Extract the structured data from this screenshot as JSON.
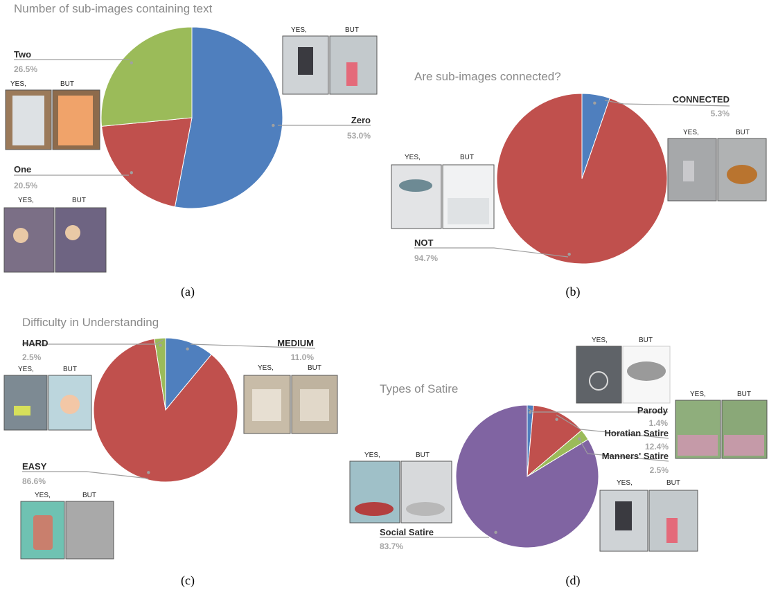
{
  "captions": [
    "(a)",
    "(b)",
    "(c)",
    "(d)"
  ],
  "thumb_labels": {
    "left": "YES,",
    "right": "BUT"
  },
  "chart_data": [
    {
      "type": "pie",
      "title": "Number of sub-images containing text",
      "colors": [
        "#4f7fbe",
        "#c0504d",
        "#9bbb59"
      ],
      "slices": [
        {
          "label": "Zero",
          "value": 53.0,
          "pct_text": "53.0%"
        },
        {
          "label": "One",
          "value": 20.5,
          "pct_text": "20.5%"
        },
        {
          "label": "Two",
          "value": 26.5,
          "pct_text": "26.5%"
        }
      ]
    },
    {
      "type": "pie",
      "title": "Are sub-images connected?",
      "colors": [
        "#4f7fbe",
        "#c0504d"
      ],
      "slices": [
        {
          "label": "CONNECTED",
          "value": 5.3,
          "pct_text": "5.3%"
        },
        {
          "label": "NOT",
          "value": 94.7,
          "pct_text": "94.7%"
        }
      ]
    },
    {
      "type": "pie",
      "title": "Difficulty in Understanding",
      "colors": [
        "#4f7fbe",
        "#c0504d",
        "#9bbb59"
      ],
      "slices": [
        {
          "label": "MEDIUM",
          "value": 11.0,
          "pct_text": "11.0%"
        },
        {
          "label": "EASY",
          "value": 86.6,
          "pct_text": "86.6%"
        },
        {
          "label": "HARD",
          "value": 2.5,
          "pct_text": "2.5%"
        }
      ]
    },
    {
      "type": "pie",
      "title": "Types of Satire",
      "colors": [
        "#4f7fbe",
        "#c0504d",
        "#9bbb59",
        "#8064a2"
      ],
      "slices": [
        {
          "label": "Parody",
          "value": 1.4,
          "pct_text": "1.4%"
        },
        {
          "label": "Horatian Satire",
          "value": 12.4,
          "pct_text": "12.4%"
        },
        {
          "label": "Manners' Satire",
          "value": 2.5,
          "pct_text": "2.5%"
        },
        {
          "label": "Social Satire",
          "value": 83.7,
          "pct_text": "83.7%"
        }
      ]
    }
  ]
}
